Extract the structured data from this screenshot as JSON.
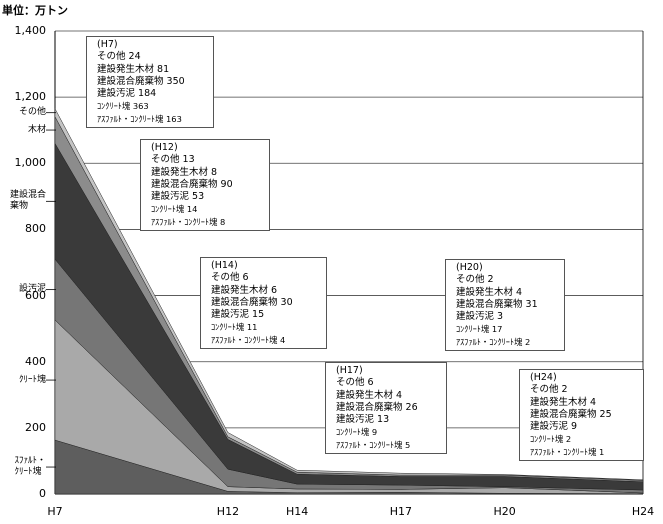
{
  "chart_data": {
    "type": "area",
    "stacked": true,
    "unit_label": "単位：万トン",
    "x": [
      "H7",
      "H12",
      "H14",
      "H17",
      "H20",
      "H24"
    ],
    "x_positions": [
      7,
      12,
      14,
      17,
      20,
      24
    ],
    "ylim": [
      0,
      1400
    ],
    "yticks": [
      "0",
      "200",
      "400",
      "600",
      "800",
      "1,000",
      "1,200",
      "1,400"
    ],
    "grid": true,
    "series": [
      {
        "name": "アスファルト・コンクリート塊",
        "label_lines": [
          "ｽﾌｧﾙﾄ・",
          "ｸﾘｰﾄ塊"
        ],
        "values": [
          163,
          8,
          4,
          5,
          2,
          1
        ],
        "color": "#5e5e5e"
      },
      {
        "name": "コンクリート塊",
        "label_lines": [
          "ｸﾘｰﾄ塊"
        ],
        "values": [
          363,
          14,
          11,
          9,
          17,
          2
        ],
        "color": "#a9a9a9"
      },
      {
        "name": "建設汚泥",
        "label_lines": [
          "設汚泥"
        ],
        "values": [
          184,
          53,
          15,
          13,
          3,
          9
        ],
        "color": "#767676"
      },
      {
        "name": "建設混合廃棄物",
        "label_lines": [
          "建設混合",
          "棄物"
        ],
        "values": [
          350,
          90,
          30,
          26,
          31,
          25
        ],
        "color": "#3a3a3a"
      },
      {
        "name": "建設発生木材",
        "label_lines": [
          "木材"
        ],
        "values": [
          81,
          8,
          6,
          4,
          4,
          4
        ],
        "color": "#8c8c8c"
      },
      {
        "name": "その他",
        "label_lines": [
          "その他"
        ],
        "values": [
          24,
          13,
          6,
          6,
          2,
          2
        ],
        "color": "#c4c4c4"
      }
    ],
    "annotations": [
      {
        "year": "(H7)",
        "lines": [
          "その他 24",
          "建設発生木材 81",
          "建設混合廃棄物 350",
          "建設汚泥 184",
          "ｺﾝｸﾘｰﾄ塊 363",
          "ｱｽﾌｧﾙﾄ・ｺﾝｸﾘｰﾄ塊 163"
        ]
      },
      {
        "year": "(H12)",
        "lines": [
          "その他 13",
          "建設発生木材 8",
          "建設混合廃棄物 90",
          "建設汚泥 53",
          "ｺﾝｸﾘｰﾄ塊 14",
          "ｱｽﾌｧﾙﾄ・ｺﾝｸﾘｰﾄ塊 8"
        ]
      },
      {
        "year": "(H14)",
        "lines": [
          "その他 6",
          "建設発生木材 6",
          "建設混合廃棄物 30",
          "建設汚泥 15",
          "ｺﾝｸﾘｰﾄ塊 11",
          "ｱｽﾌｧﾙﾄ・ｺﾝｸﾘｰﾄ塊 4"
        ]
      },
      {
        "year": "(H17)",
        "lines": [
          "その他 6",
          "建設発生木材 4",
          "建設混合廃棄物 26",
          "建設汚泥 13",
          "ｺﾝｸﾘｰﾄ塊 9",
          "ｱｽﾌｧﾙﾄ・ｺﾝｸﾘｰﾄ塊 5"
        ]
      },
      {
        "year": "(H20)",
        "lines": [
          "その他 2",
          "建設発生木材 4",
          "建設混合廃棄物 31",
          "建設汚泥 3",
          "ｺﾝｸﾘｰﾄ塊 17",
          "ｱｽﾌｧﾙﾄ・ｺﾝｸﾘｰﾄ塊 2"
        ]
      },
      {
        "year": "(H24)",
        "lines": [
          "その他 2",
          "建設発生木材 4",
          "建設混合廃棄物 25",
          "建設汚泥 9",
          "ｺﾝｸﾘｰﾄ塊 2",
          "ｱｽﾌｧﾙﾄ・ｺﾝｸﾘｰﾄ塊 1"
        ]
      }
    ]
  }
}
